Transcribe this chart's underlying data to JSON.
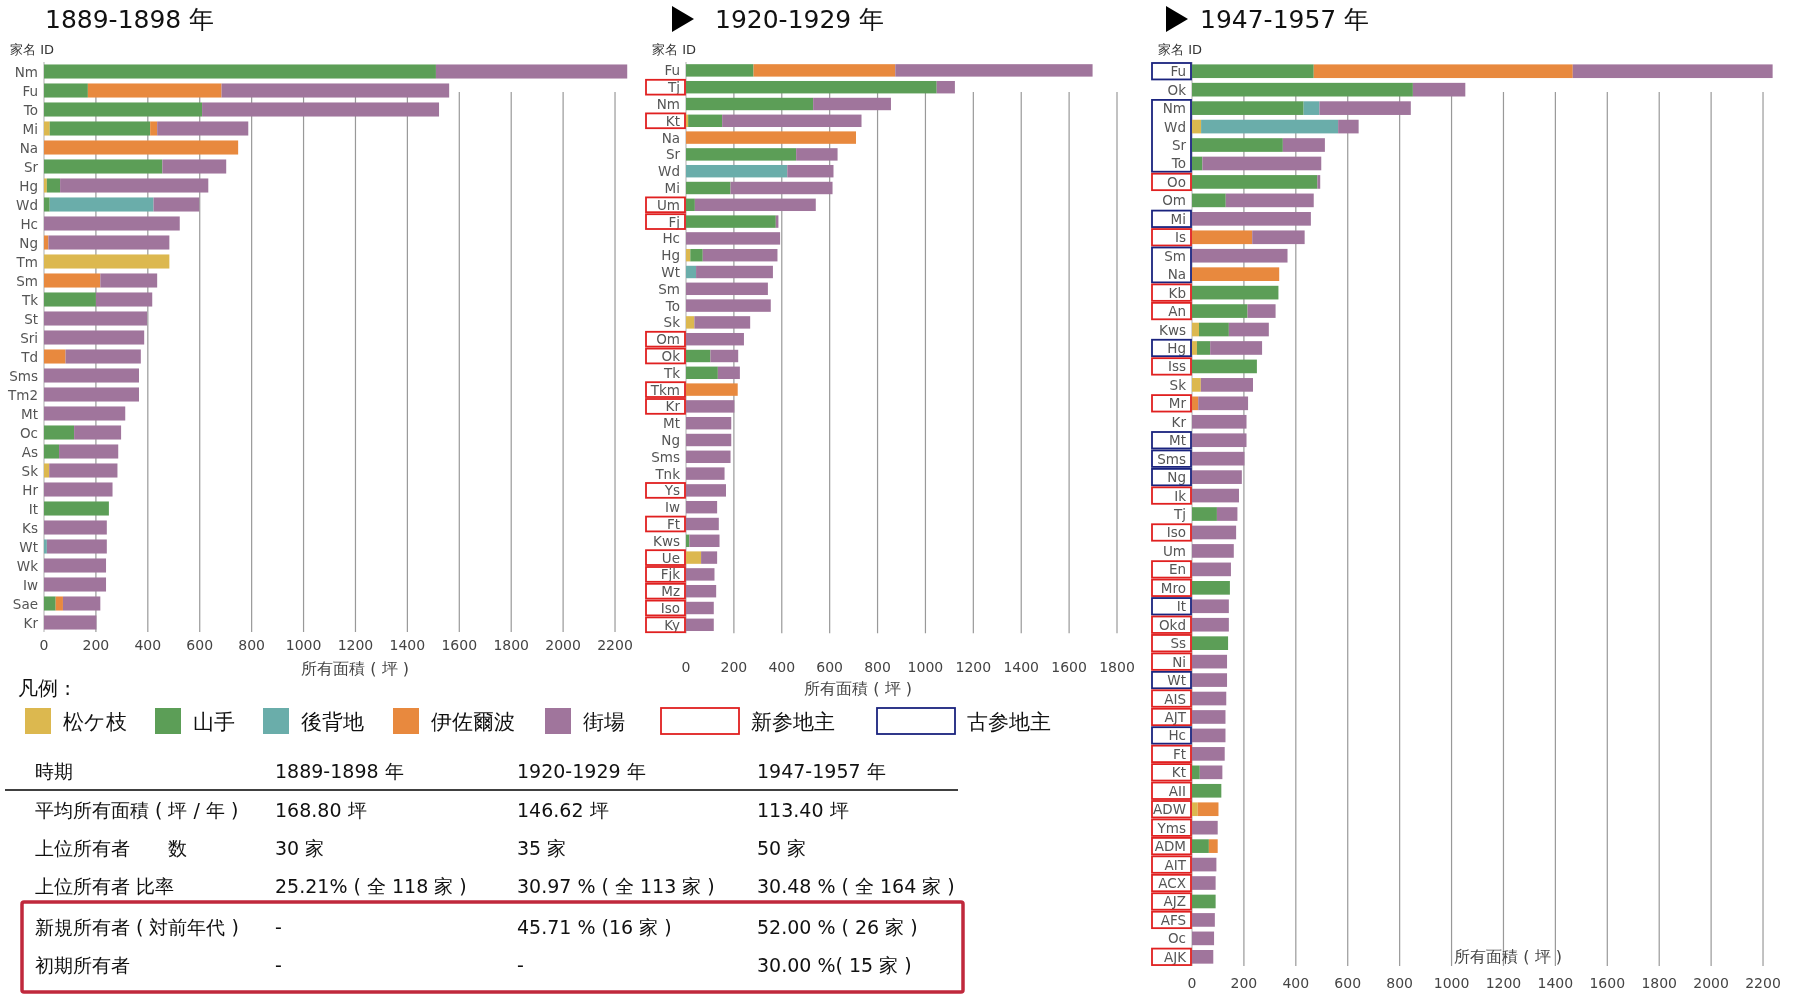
{
  "chart_data": [
    {
      "type": "bar",
      "orientation": "horizontal",
      "stacked": true,
      "title": "1889-1898 年",
      "ylabel": "家名 ID",
      "xlabel": "所有面積 ( 坪 )",
      "legend_title": "凡例 :",
      "annotations": [
        "新参地主",
        "古参地主"
      ],
      "legend": "bottom",
      "grid": "x",
      "xlim": [
        0,
        2250
      ],
      "xticks": [
        0,
        200,
        400,
        600,
        800,
        1000,
        1200,
        1400,
        1600,
        1800,
        2000,
        2200
      ],
      "categories": [
        "Nm",
        "Fu",
        "To",
        "Mi",
        "Na",
        "Sr",
        "Hg",
        "Wd",
        "Hc",
        "Ng",
        "Tm",
        "Sm",
        "Tk",
        "St",
        "Sri",
        "Td",
        "Sms",
        "Tm2",
        "Mt",
        "Oc",
        "As",
        "Sk",
        "Hr",
        "It",
        "Ks",
        "Wt",
        "Wk",
        "Iw",
        "Sae",
        "Kr"
      ],
      "series": [
        {
          "name": "松ケ枝",
          "color": "#dcb84f",
          "values": [
            null,
            null,
            null,
            22,
            null,
            null,
            11,
            null,
            null,
            null,
            483,
            null,
            null,
            null,
            null,
            null,
            null,
            null,
            null,
            null,
            null,
            20,
            null,
            null,
            null,
            null,
            null,
            null,
            null,
            null
          ]
        },
        {
          "name": "山手",
          "color": "#5c9e57",
          "values": [
            1510,
            169,
            609,
            387,
            null,
            456,
            51,
            22,
            null,
            null,
            null,
            null,
            200,
            null,
            null,
            null,
            null,
            null,
            null,
            116,
            58,
            null,
            null,
            250,
            null,
            null,
            null,
            null,
            45,
            null
          ]
        },
        {
          "name": "後背地",
          "color": "#6aadaa",
          "values": [
            null,
            null,
            null,
            null,
            null,
            null,
            null,
            400,
            null,
            null,
            null,
            null,
            null,
            null,
            null,
            null,
            null,
            null,
            null,
            null,
            null,
            null,
            null,
            null,
            null,
            11,
            null,
            null,
            null,
            null
          ]
        },
        {
          "name": "伊佐爾波",
          "color": "#e8893e",
          "values": [
            null,
            515,
            null,
            27,
            748,
            null,
            null,
            null,
            null,
            17,
            null,
            217,
            null,
            null,
            null,
            83,
            null,
            null,
            null,
            null,
            null,
            null,
            null,
            null,
            null,
            null,
            null,
            null,
            28,
            null
          ]
        },
        {
          "name": "街場",
          "color": "#a0759c",
          "values": [
            737,
            877,
            913,
            351,
            null,
            246,
            571,
            176,
            523,
            466,
            null,
            219,
            217,
            397,
            386,
            290,
            366,
            366,
            313,
            181,
            228,
            263,
            264,
            null,
            242,
            231,
            239,
            239,
            144,
            202
          ]
        }
      ]
    },
    {
      "type": "bar",
      "orientation": "horizontal",
      "stacked": true,
      "title": "1920-1929 年",
      "ylabel": "家名 ID",
      "xlabel": "所有面積 ( 坪 )",
      "grid": "x",
      "xlim": [
        0,
        1800
      ],
      "xticks": [
        0,
        200,
        400,
        600,
        800,
        1000,
        1200,
        1400,
        1600,
        1800
      ],
      "categories": [
        "Fu",
        "Tj",
        "Nm",
        "Kt",
        "Na",
        "Sr",
        "Wd",
        "Mi",
        "Um",
        "Fj",
        "Hc",
        "Hg",
        "Wt",
        "Sm",
        "To",
        "Sk",
        "Om",
        "Ok",
        "Tk",
        "Tkm",
        "Kr",
        "Mt",
        "Ng",
        "Sms",
        "Tnk",
        "Ys",
        "Iw",
        "Ft",
        "Kws",
        "Ue",
        "Fjk",
        "Mz",
        "Iso",
        "Ky"
      ],
      "series": [
        {
          "color": "#dcb84f",
          "values": [
            null,
            null,
            null,
            9,
            null,
            null,
            null,
            null,
            null,
            null,
            null,
            18,
            null,
            null,
            null,
            35,
            null,
            null,
            null,
            null,
            null,
            null,
            null,
            null,
            null,
            null,
            null,
            null,
            null,
            63,
            null,
            null,
            null,
            null
          ]
        },
        {
          "color": "#5c9e57",
          "values": [
            282,
            1047,
            531,
            142,
            null,
            460,
            null,
            186,
            37,
            375,
            null,
            52,
            null,
            null,
            null,
            null,
            null,
            102,
            133,
            null,
            null,
            null,
            null,
            null,
            null,
            null,
            null,
            null,
            14,
            null,
            null,
            null,
            null,
            null
          ]
        },
        {
          "color": "#6aadaa",
          "values": [
            null,
            null,
            null,
            null,
            null,
            null,
            423,
            null,
            null,
            null,
            null,
            null,
            42,
            null,
            null,
            null,
            null,
            null,
            null,
            null,
            null,
            null,
            null,
            null,
            null,
            null,
            null,
            null,
            null,
            null,
            null,
            null,
            null,
            null
          ]
        },
        {
          "color": "#e8893e",
          "values": [
            592,
            null,
            null,
            null,
            710,
            null,
            null,
            null,
            null,
            null,
            null,
            null,
            null,
            null,
            null,
            null,
            null,
            null,
            null,
            216,
            null,
            null,
            null,
            null,
            null,
            null,
            null,
            null,
            null,
            null,
            null,
            null,
            null,
            null
          ]
        },
        {
          "color": "#a0759c",
          "values": [
            824,
            76,
            325,
            582,
            null,
            173,
            193,
            426,
            505,
            11,
            393,
            312,
            321,
            342,
            354,
            233,
            242,
            116,
            92,
            null,
            202,
            189,
            189,
            186,
            161,
            167,
            130,
            137,
            126,
            67,
            119,
            126,
            116,
            116
          ]
        }
      ]
    },
    {
      "type": "bar",
      "orientation": "horizontal",
      "stacked": true,
      "title": "1947-1957 年",
      "ylabel": "家名 ID",
      "xlabel": "所有面積 ( 坪 )",
      "grid": "x",
      "xlim": [
        0,
        2250
      ],
      "xticks": [
        0,
        200,
        400,
        600,
        800,
        1000,
        1200,
        1400,
        1600,
        1800,
        2000,
        2200
      ],
      "categories": [
        "Fu",
        "Ok",
        "Nm",
        "Wd",
        "Sr",
        "To",
        "Oo",
        "Om",
        "Mi",
        "Is",
        "Sm",
        "Na",
        "Kb",
        "An",
        "Kws",
        "Hg",
        "Iss",
        "Sk",
        "Mr",
        "Kr",
        "Mt",
        "Sms",
        "Ng",
        "Ik",
        "Tj",
        "Iso",
        "Um",
        "En",
        "Mro",
        "It",
        "Okd",
        "Ss",
        "Ni",
        "Wt",
        "AIS",
        "AJT",
        "Hc",
        "Ft",
        "Kt",
        "AII",
        "ADW",
        "Yms",
        "ADM",
        "AIT",
        "ACX",
        "AJZ",
        "AFS",
        "Oc",
        "AJK"
      ],
      "series": [
        {
          "color": "#dcb84f",
          "values": [
            null,
            null,
            null,
            35,
            null,
            null,
            null,
            null,
            null,
            null,
            null,
            null,
            null,
            null,
            27,
            19,
            null,
            34,
            null,
            null,
            null,
            null,
            null,
            null,
            null,
            null,
            null,
            null,
            null,
            null,
            null,
            null,
            null,
            null,
            null,
            null,
            null,
            null,
            null,
            null,
            22,
            null,
            null,
            null,
            null,
            null,
            null,
            null,
            null
          ]
        },
        {
          "color": "#5c9e57",
          "values": [
            469,
            851,
            430,
            null,
            350,
            40,
            483,
            130,
            null,
            null,
            null,
            null,
            333,
            214,
            115,
            51,
            250,
            null,
            null,
            null,
            null,
            null,
            null,
            null,
            96,
            null,
            null,
            null,
            146,
            null,
            null,
            139,
            null,
            null,
            null,
            null,
            null,
            null,
            30,
            113,
            null,
            null,
            65,
            null,
            null,
            91,
            null,
            null,
            null
          ]
        },
        {
          "color": "#6aadaa",
          "values": [
            null,
            null,
            61,
            528,
            null,
            null,
            null,
            null,
            null,
            null,
            null,
            null,
            null,
            null,
            null,
            null,
            null,
            null,
            null,
            null,
            null,
            null,
            null,
            null,
            null,
            null,
            null,
            null,
            null,
            null,
            null,
            null,
            null,
            null,
            null,
            null,
            null,
            null,
            null,
            null,
            null,
            null,
            null,
            null,
            null,
            null,
            null,
            null,
            null
          ]
        },
        {
          "color": "#e8893e",
          "values": [
            998,
            null,
            null,
            null,
            null,
            null,
            null,
            null,
            null,
            232,
            null,
            336,
            null,
            null,
            null,
            null,
            null,
            null,
            24,
            null,
            null,
            null,
            null,
            null,
            null,
            null,
            null,
            null,
            null,
            null,
            null,
            null,
            null,
            null,
            null,
            null,
            null,
            null,
            null,
            null,
            80,
            null,
            34,
            null,
            null,
            null,
            null,
            null,
            null
          ]
        },
        {
          "color": "#a0759c",
          "values": [
            770,
            202,
            352,
            79,
            162,
            458,
            11,
            339,
            458,
            202,
            368,
            null,
            null,
            108,
            154,
            200,
            null,
            201,
            192,
            210,
            210,
            202,
            192,
            181,
            79,
            170,
            161,
            150,
            null,
            142,
            142,
            null,
            135,
            135,
            132,
            129,
            129,
            126,
            87,
            null,
            null,
            99,
            null,
            94,
            91,
            null,
            88,
            85,
            82
          ]
        }
      ]
    },
    {
      "type": "other",
      "annotations": [
        "時期",
        "1889-1898 年",
        "1920-1929 年",
        "1947-1957 年",
        "平均所有面積 ( 坪 / 年 )",
        "168.80 坪",
        "146.62 坪",
        "113.40 坪",
        "上位所有者　　数",
        "30 家",
        "35 家",
        "50 家",
        "上位所有者  比率",
        "25.21% ( 全 118 家 )",
        "30.97 % ( 全 113 家 )",
        "30.48 % ( 全 164 家 )",
        "新規所有者 ( 対前年代 )",
        "-",
        "45.71 % (16 家 )",
        "52.00 % ( 26 家 )",
        "初期所有者",
        "-",
        "-",
        "30.00 %( 15 家 )"
      ]
    }
  ]
}
